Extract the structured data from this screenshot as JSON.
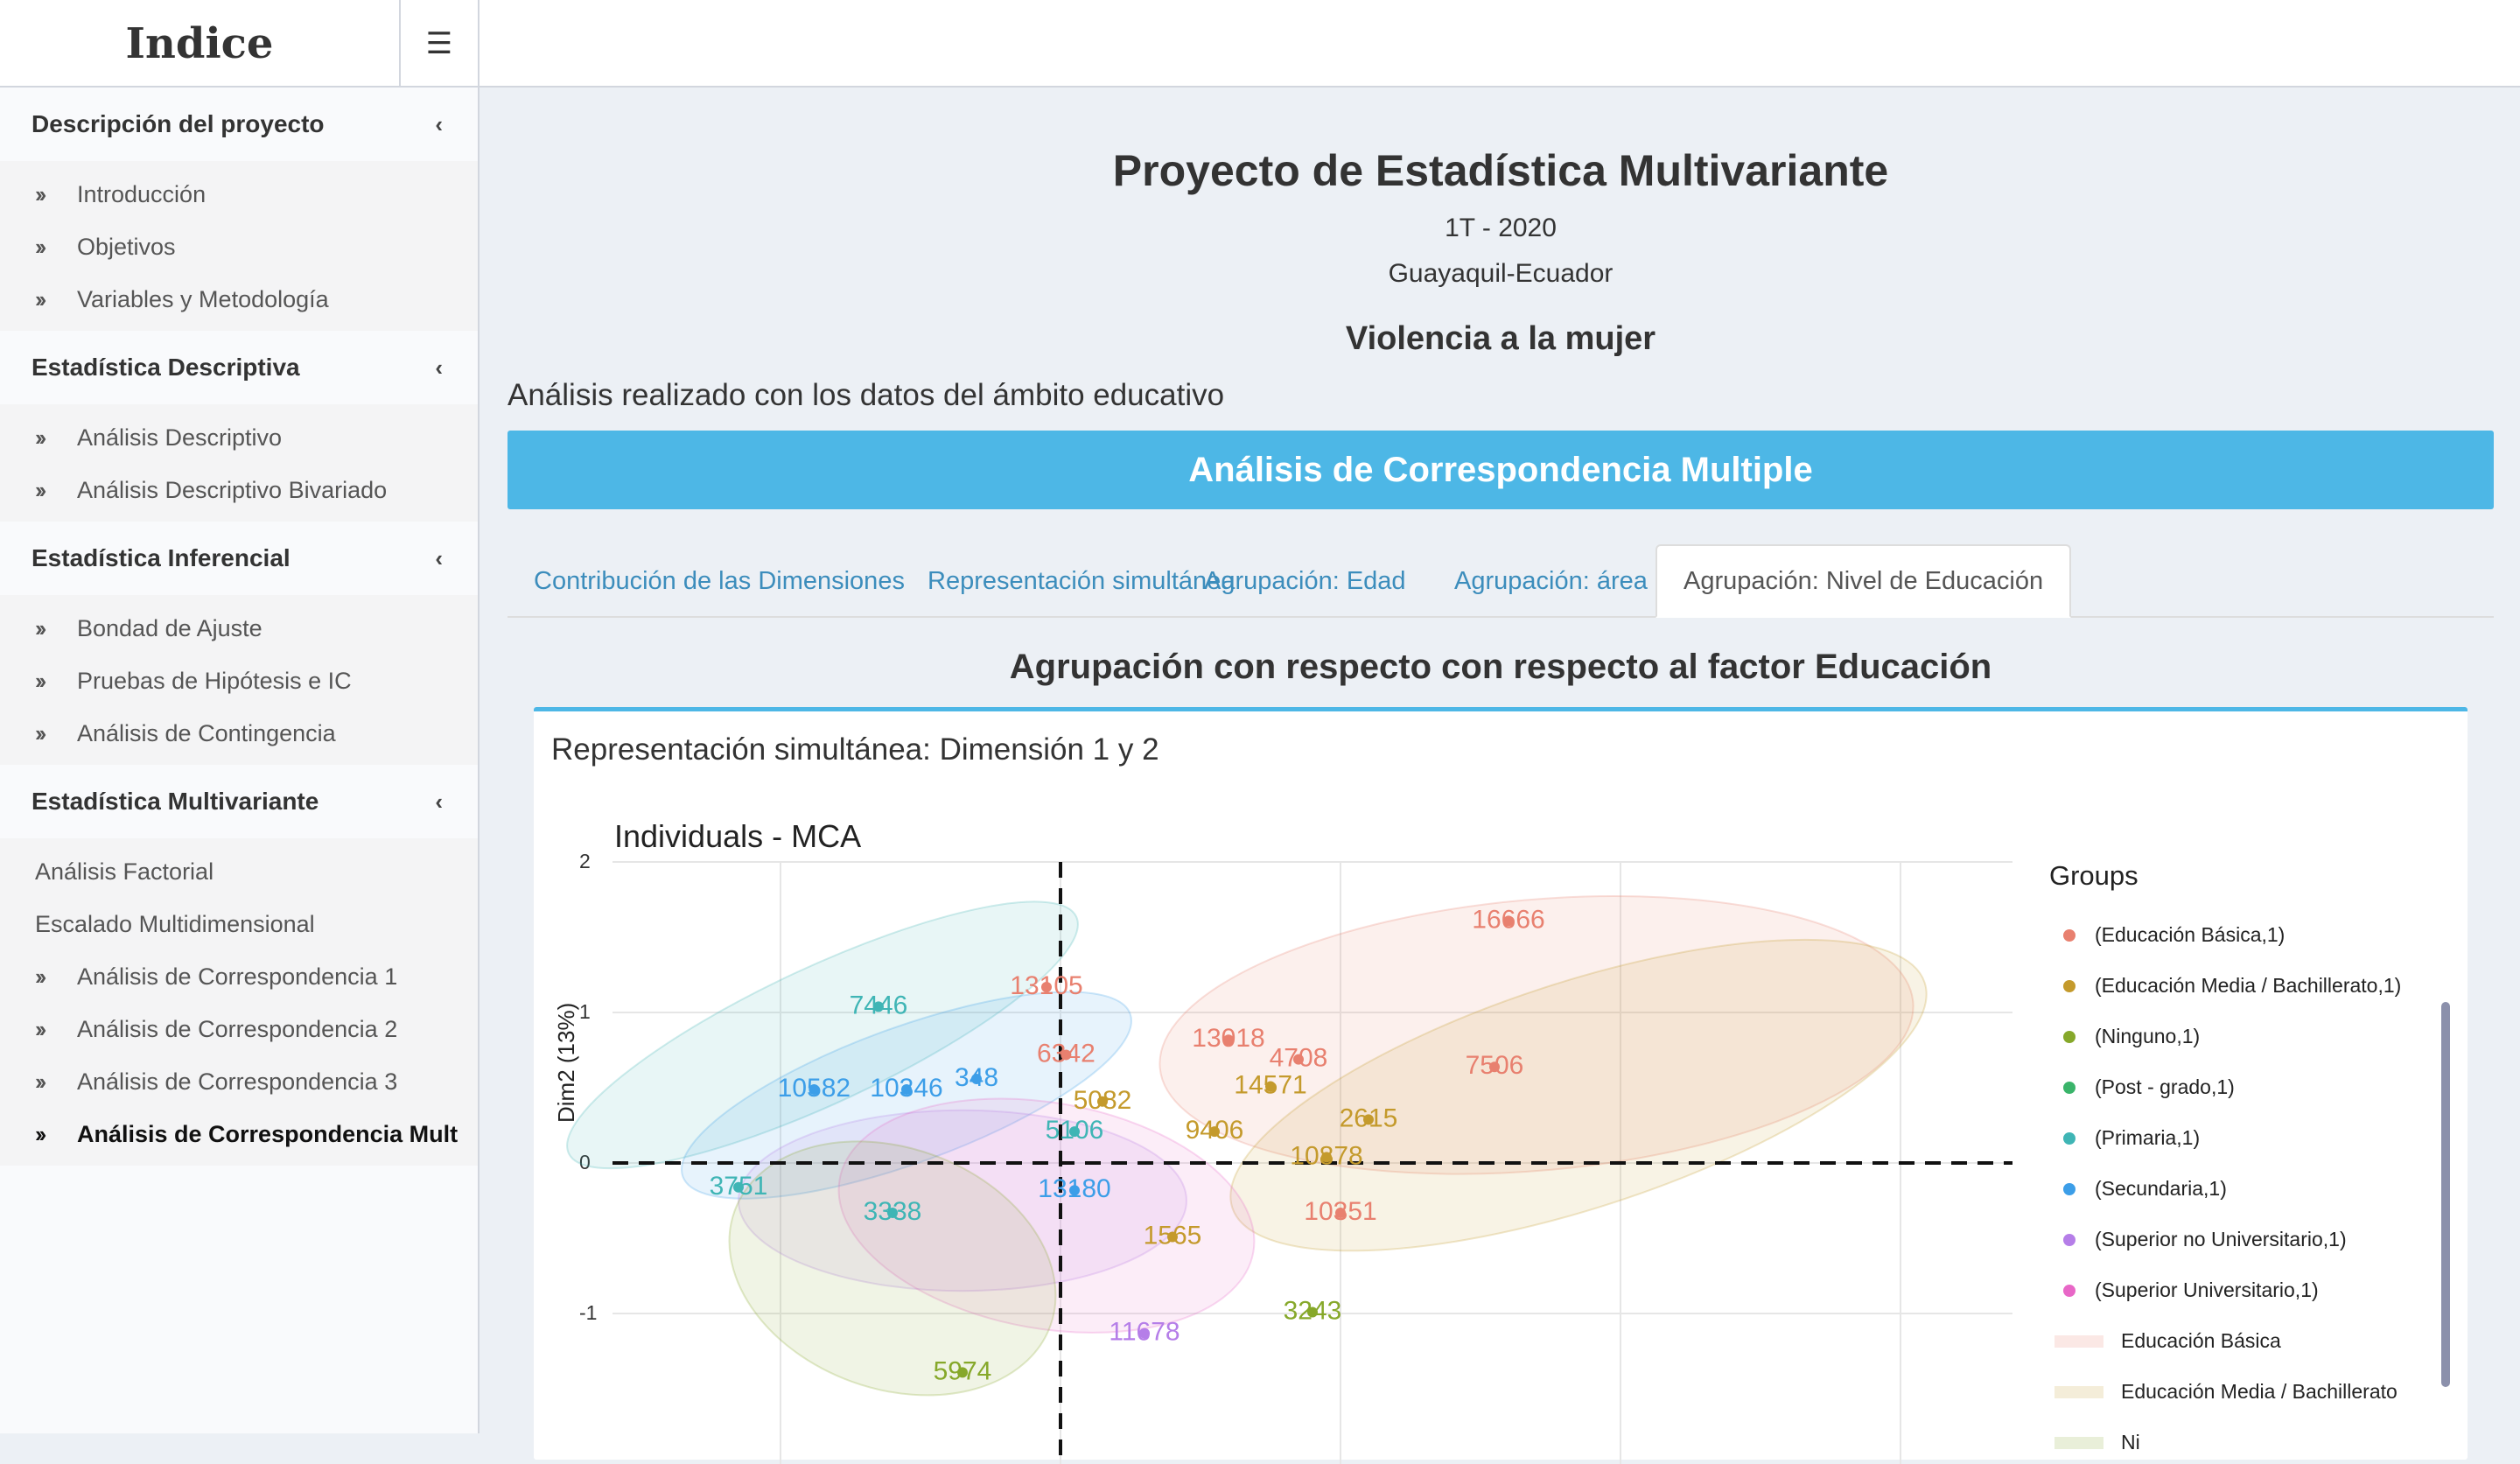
{
  "header": {
    "brand": "Indice",
    "menu_icon": "hamburger-icon"
  },
  "sidebar": {
    "sections": [
      {
        "title": "Descripción del proyecto",
        "items": [
          "Introducción",
          "Objetivos",
          "Variables y Metodología"
        ]
      },
      {
        "title": "Estadística Descriptiva",
        "items": [
          "Análisis Descriptivo",
          "Análisis Descriptivo Bivariado"
        ]
      },
      {
        "title": "Estadística Inferencial",
        "items": [
          "Bondad de Ajuste",
          "Pruebas de Hipótesis e IC",
          "Análisis de Contingencia"
        ]
      },
      {
        "title": "Estadística Multivariante",
        "plain_items": [
          "Análisis Factorial",
          "Escalado Multidimensional"
        ],
        "items": [
          "Análisis de Correspondencia 1",
          "Análisis de Correspondencia 2",
          "Análisis de Correspondencia 3",
          "Análisis de Correspondencia Mult"
        ]
      }
    ]
  },
  "main": {
    "title": "Proyecto de Estadística Multivariante",
    "period": "1T - 2020",
    "place": "Guayaquil-Ecuador",
    "topic": "Violencia a la mujer",
    "intro": "Análisis realizado con los datos del ámbito educativo",
    "banner": "Análisis de Correspondencia Multiple",
    "tabs": [
      "Contribución de las Dimensiones",
      "Representación simultánea",
      "Agrupación: Edad",
      "Agrupación: área",
      "Agrupación: Nivel de Educación"
    ],
    "active_tab": 4,
    "section_title": "Agrupación con respecto con respecto al factor Educación",
    "box_title": "Representación simultánea: Dimensión 1 y 2"
  },
  "chart_data": {
    "type": "scatter",
    "title": "Individuals - MCA",
    "ylabel": "Dim2 (13%)",
    "xlabel": "",
    "yticks": [
      "2",
      "1",
      "0",
      "-1"
    ],
    "ylim": [
      -1.6,
      2.0
    ],
    "xlim": [
      -1.6,
      3.4
    ],
    "legend_title": "Groups",
    "legend_position": "right",
    "groups": [
      {
        "name": "(Educación Básica,1)",
        "color": "#e8806f"
      },
      {
        "name": "(Educación Media / Bachillerato,1)",
        "color": "#c49a2c"
      },
      {
        "name": "(Ninguno,1)",
        "color": "#86a82a"
      },
      {
        "name": "(Post - grado,1)",
        "color": "#3ab46a"
      },
      {
        "name": "(Primaria,1)",
        "color": "#3fb5b5"
      },
      {
        "name": "(Secundaria,1)",
        "color": "#3c9ee8"
      },
      {
        "name": "(Superior no Universitario,1)",
        "color": "#b57ee8"
      },
      {
        "name": "(Superior Universitario,1)",
        "color": "#e867c7"
      }
    ],
    "ellipse_legend": [
      "Educación Básica",
      "Educación Media / Bachillerato",
      "Ni"
    ],
    "ellipses": [
      {
        "group": 0,
        "cx": 1.7,
        "cy": 0.85,
        "rx": 1.35,
        "ry": 0.9,
        "rot": -5
      },
      {
        "group": 1,
        "cx": 1.85,
        "cy": 0.45,
        "rx": 1.3,
        "ry": 0.75,
        "rot": -18
      },
      {
        "group": 4,
        "cx": -0.85,
        "cy": 0.85,
        "rx": 1.0,
        "ry": 0.45,
        "rot": -25
      },
      {
        "group": 5,
        "cx": -0.55,
        "cy": 0.45,
        "rx": 0.85,
        "ry": 0.45,
        "rot": -20
      },
      {
        "group": 6,
        "cx": -0.35,
        "cy": -0.25,
        "rx": 0.8,
        "ry": 0.6,
        "rot": 0
      },
      {
        "group": 7,
        "cx": -0.05,
        "cy": -0.35,
        "rx": 0.75,
        "ry": 0.75,
        "rot": 10
      },
      {
        "group": 2,
        "cx": -0.6,
        "cy": -0.7,
        "rx": 0.6,
        "ry": 0.8,
        "rot": 20
      }
    ],
    "labels": [
      {
        "t": "16666",
        "x": 1.6,
        "y": 1.62,
        "g": 0
      },
      {
        "t": "13105",
        "x": -0.05,
        "y": 1.18,
        "g": 0
      },
      {
        "t": "13018",
        "x": 0.6,
        "y": 0.83,
        "g": 0
      },
      {
        "t": "6342",
        "x": 0.02,
        "y": 0.73,
        "g": 0
      },
      {
        "t": "14571",
        "x": 0.75,
        "y": 0.52,
        "g": 1
      },
      {
        "t": "5082",
        "x": 0.15,
        "y": 0.42,
        "g": 1
      },
      {
        "t": "9406",
        "x": 0.55,
        "y": 0.22,
        "g": 1
      },
      {
        "t": "10351",
        "x": 1.0,
        "y": -0.32,
        "g": 0
      },
      {
        "t": "1565",
        "x": 0.4,
        "y": -0.48,
        "g": 1
      },
      {
        "t": "3243",
        "x": 0.9,
        "y": -0.98,
        "g": 2
      },
      {
        "t": "5974",
        "x": -0.35,
        "y": -1.38,
        "g": 2
      },
      {
        "t": "11678",
        "x": 0.3,
        "y": -1.12,
        "g": 6
      },
      {
        "t": "7446",
        "x": -0.65,
        "y": 1.05,
        "g": 4
      },
      {
        "t": "10582",
        "x": -0.88,
        "y": 0.5,
        "g": 5
      },
      {
        "t": "10346",
        "x": -0.55,
        "y": 0.5,
        "g": 5
      },
      {
        "t": "348",
        "x": -0.3,
        "y": 0.57,
        "g": 5
      },
      {
        "t": "3338",
        "x": -0.6,
        "y": -0.32,
        "g": 4
      },
      {
        "t": "3751",
        "x": -1.15,
        "y": -0.15,
        "g": 4
      },
      {
        "t": "5106",
        "x": 0.05,
        "y": 0.22,
        "g": 4
      },
      {
        "t": "13180",
        "x": 0.05,
        "y": -0.17,
        "g": 5
      },
      {
        "t": "7506",
        "x": 1.55,
        "y": 0.65,
        "g": 0
      },
      {
        "t": "2615",
        "x": 1.1,
        "y": 0.3,
        "g": 1
      },
      {
        "t": "4708",
        "x": 0.85,
        "y": 0.7,
        "g": 0
      },
      {
        "t": "10878",
        "x": 0.95,
        "y": 0.05,
        "g": 1
      }
    ]
  }
}
